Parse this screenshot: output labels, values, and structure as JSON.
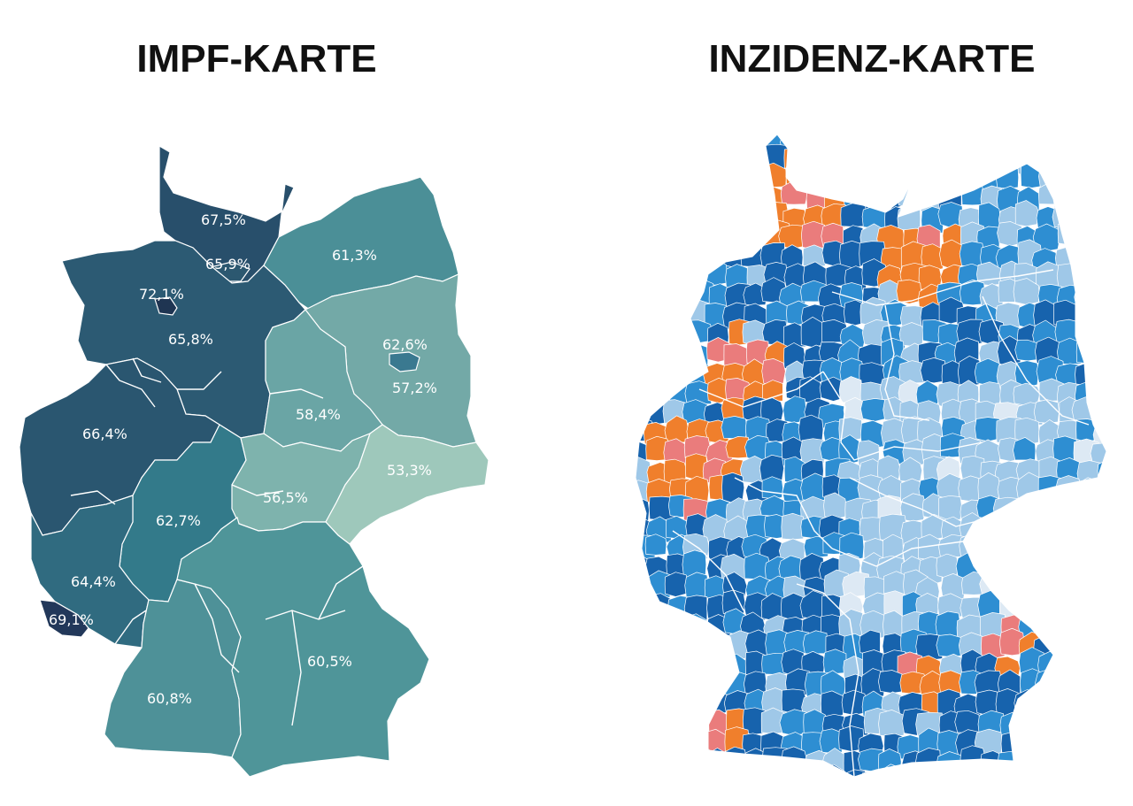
{
  "titles": {
    "left": "IMPF-KARTE",
    "right": "INZIDENZ-KARTE"
  },
  "impf_map": {
    "states": [
      {
        "key": "sh",
        "name": "Schleswig-Holstein",
        "label": "67,5%",
        "value": 67.5,
        "color": "#284f6b"
      },
      {
        "key": "hh",
        "name": "Hamburg",
        "label": "65,9%",
        "value": 65.9,
        "color": "#2c5870"
      },
      {
        "key": "hb",
        "name": "Bremen",
        "label": "72,1%",
        "value": 72.1,
        "color": "#1f3552"
      },
      {
        "key": "ni",
        "name": "Niedersachsen",
        "label": "65,8%",
        "value": 65.8,
        "color": "#2c5a73"
      },
      {
        "key": "mv",
        "name": "Mecklenburg-Vorpommern",
        "label": "61,3%",
        "value": 61.3,
        "color": "#4b8f97"
      },
      {
        "key": "bb",
        "name": "Brandenburg",
        "label": "57,2%",
        "value": 57.2,
        "color": "#73a9a7"
      },
      {
        "key": "be",
        "name": "Berlin",
        "label": "62,6%",
        "value": 62.6,
        "color": "#3a7990"
      },
      {
        "key": "st",
        "name": "Sachsen-Anhalt",
        "label": "58,4%",
        "value": 58.4,
        "color": "#6aa5a5"
      },
      {
        "key": "nw",
        "name": "Nordrhein-Westfalen",
        "label": "66,4%",
        "value": 66.4,
        "color": "#2a5670"
      },
      {
        "key": "he",
        "name": "Hessen",
        "label": "62,7%",
        "value": 62.7,
        "color": "#337a8a"
      },
      {
        "key": "th",
        "name": "Thüringen",
        "label": "56,5%",
        "value": 56.5,
        "color": "#7eb3ad"
      },
      {
        "key": "sn",
        "name": "Sachsen",
        "label": "53,3%",
        "value": 53.3,
        "color": "#9ec8bb"
      },
      {
        "key": "rp",
        "name": "Rheinland-Pfalz",
        "label": "64,4%",
        "value": 64.4,
        "color": "#306b80"
      },
      {
        "key": "sl",
        "name": "Saarland",
        "label": "69,1%",
        "value": 69.1,
        "color": "#22385a"
      },
      {
        "key": "bw",
        "name": "Baden-Württemberg",
        "label": "60,8%",
        "value": 60.8,
        "color": "#4e9198"
      },
      {
        "key": "by",
        "name": "Bayern",
        "label": "60,5%",
        "value": 60.5,
        "color": "#4f9599"
      }
    ]
  },
  "inzidenz_map": {
    "colors": {
      "dark_blue": "#1763ad",
      "mid_blue": "#2e8ed2",
      "light_blue": "#9fc8e8",
      "pale": "#dde9f4",
      "orange": "#f07f2c",
      "salmon": "#ea7c7c"
    }
  }
}
